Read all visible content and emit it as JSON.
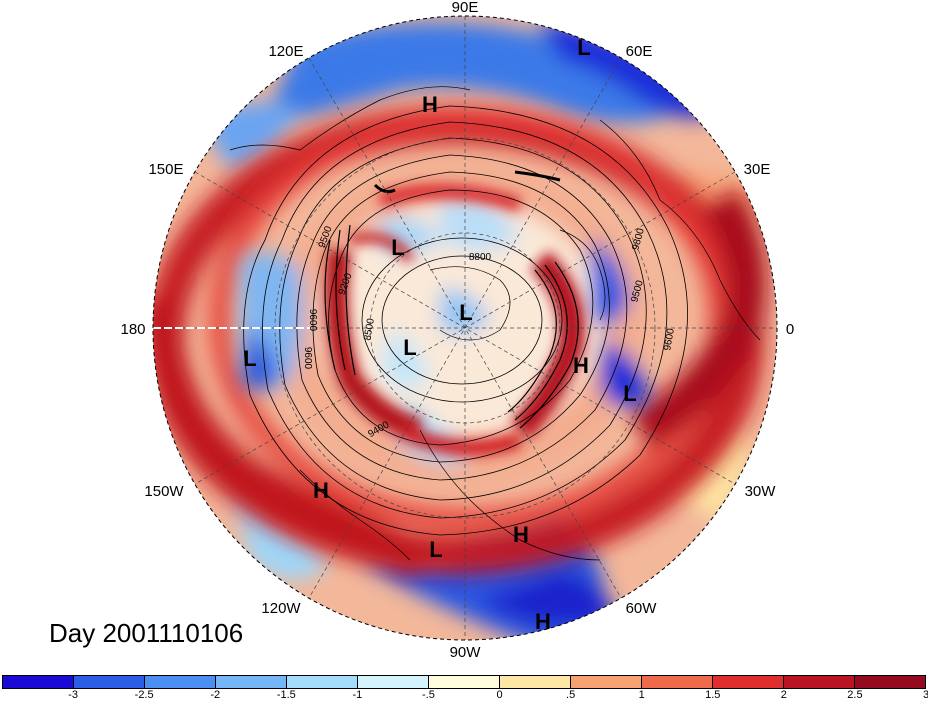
{
  "title": "Day 2001110106",
  "longitude_labels": {
    "lon_90e": "90E",
    "lon_60e": "60E",
    "lon_30e": "30E",
    "lon_0": "0",
    "lon_30w": "30W",
    "lon_60w": "60W",
    "lon_90w": "90W",
    "lon_120w": "120W",
    "lon_150w": "150W",
    "lon_180": "180",
    "lon_150e": "150E",
    "lon_120e": "120E"
  },
  "pressure_centers": [
    {
      "type": "L",
      "label": "L"
    },
    {
      "type": "H",
      "label": "H"
    },
    {
      "type": "L",
      "label": "L"
    },
    {
      "type": "L",
      "label": "L"
    },
    {
      "type": "L",
      "label": "L"
    },
    {
      "type": "L",
      "label": "L"
    },
    {
      "type": "H",
      "label": "H"
    },
    {
      "type": "L",
      "label": "L"
    },
    {
      "type": "H",
      "label": "H"
    },
    {
      "type": "L",
      "label": "L"
    },
    {
      "type": "H",
      "label": "H"
    },
    {
      "type": "H",
      "label": "H"
    }
  ],
  "contour_labels": [
    "8800",
    "9500",
    "9200",
    "9600",
    "8500",
    "9600",
    "9400",
    "9600",
    "9500",
    "9800"
  ],
  "colorbar": {
    "colors": [
      "#1a0ad6",
      "#2a5ee6",
      "#4c8ff2",
      "#74b6f7",
      "#a5dcfb",
      "#d5f3fc",
      "#fefcdc",
      "#fde7a6",
      "#f6a273",
      "#ee6a4b",
      "#e02e2e",
      "#b81424",
      "#950a1e"
    ],
    "tick_labels": [
      "-3",
      "-2.5",
      "-2",
      "-1.5",
      "-1",
      "-.5",
      "0",
      ".5",
      "1",
      "1.5",
      "2",
      "2.5",
      "3"
    ]
  }
}
